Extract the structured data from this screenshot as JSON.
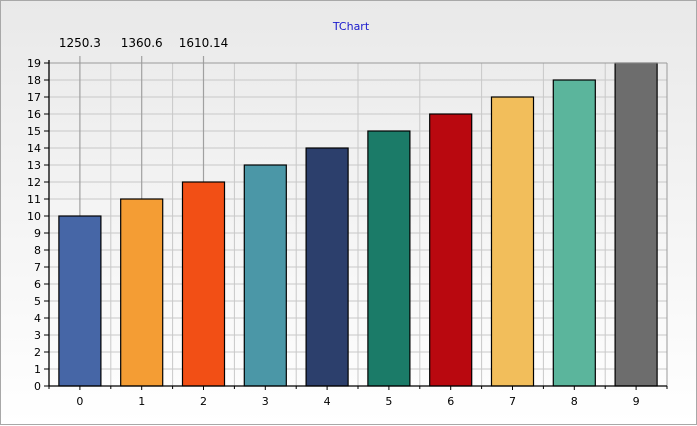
{
  "chart_data": {
    "type": "bar",
    "title": "TChart",
    "xlabel": "",
    "ylabel": "",
    "categories": [
      "0",
      "1",
      "2",
      "3",
      "4",
      "5",
      "6",
      "7",
      "8",
      "9"
    ],
    "values": [
      10,
      11,
      12,
      13,
      14,
      15,
      16,
      17,
      18,
      19
    ],
    "colors": [
      "#4666A6",
      "#F49D34",
      "#F24F15",
      "#4B97A7",
      "#2C3F6C",
      "#1B7B68",
      "#B9080F",
      "#F2BE5B",
      "#5BB59C",
      "#6D6D6D"
    ],
    "ylim": [
      0,
      19
    ],
    "yticks": [
      0,
      1,
      2,
      3,
      4,
      5,
      6,
      7,
      8,
      9,
      10,
      11,
      12,
      13,
      14,
      15,
      16,
      17,
      18,
      19
    ],
    "grid": true,
    "legend": "none",
    "annotations": [
      {
        "category": "0",
        "text": "1250.3"
      },
      {
        "category": "1",
        "text": "1360.6"
      },
      {
        "category": "2",
        "text": "1610.14"
      }
    ],
    "grid_color": "#c8c8c8",
    "annotation_line_color": "#a0a0a0"
  }
}
